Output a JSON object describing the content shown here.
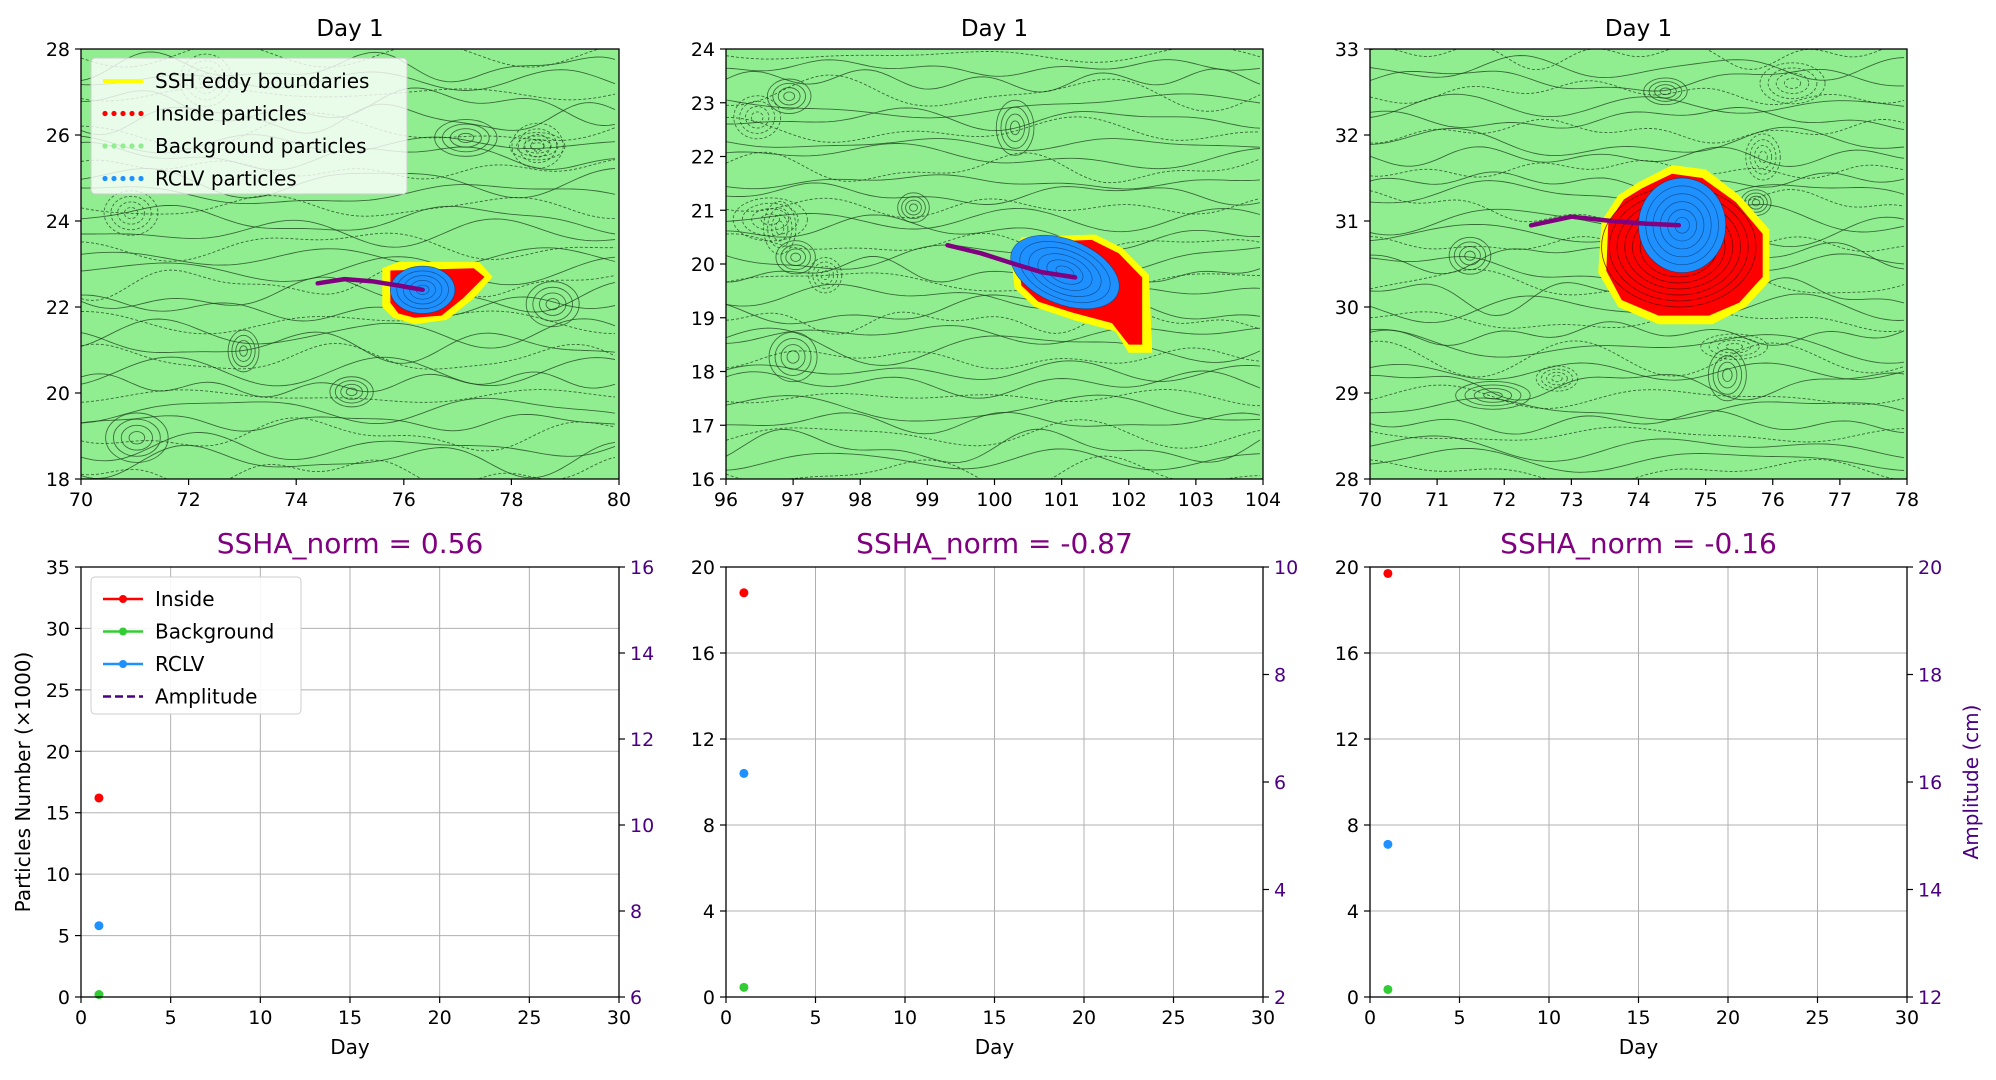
{
  "colors": {
    "boundary": "#ffff00",
    "inside": "#ff0000",
    "background": "#32cd32",
    "background_field": "#90ee90",
    "rclv": "#1e90ff",
    "track": "#800080",
    "contour": "#1a3d1a",
    "amplitude_axis": "#4b0082",
    "grid": "#b0b0b0"
  },
  "legends": {
    "map": [
      {
        "label": "SSH eddy boundaries",
        "color": "#ffff00",
        "style": "solid"
      },
      {
        "label": "Inside particles",
        "color": "#ff0000",
        "style": "dotted"
      },
      {
        "label": "Background particles",
        "color": "#90ee90",
        "style": "dotted"
      },
      {
        "label": "RCLV particles",
        "color": "#1e90ff",
        "style": "dotted"
      }
    ],
    "series": [
      {
        "label": "Inside",
        "color": "#ff0000",
        "style": "solid-marker"
      },
      {
        "label": "Background",
        "color": "#32cd32",
        "style": "solid-marker"
      },
      {
        "label": "RCLV",
        "color": "#1e90ff",
        "style": "solid-marker"
      },
      {
        "label": "Amplitude",
        "color": "#4b0082",
        "style": "dashed"
      }
    ]
  },
  "chart_data": [
    {
      "type": "contour",
      "title": "Day 1",
      "xlim": [
        70,
        80
      ],
      "ylim": [
        18,
        28
      ],
      "xticks": [
        70,
        72,
        74,
        76,
        78,
        80
      ],
      "yticks": [
        18,
        20,
        22,
        24,
        26,
        28
      ],
      "eddy_center": [
        76.3,
        22.4
      ],
      "track": [
        [
          74.4,
          22.55
        ],
        [
          74.9,
          22.65
        ],
        [
          75.4,
          22.6
        ],
        [
          75.9,
          22.5
        ],
        [
          76.35,
          22.4
        ]
      ],
      "legend": "upper-left"
    },
    {
      "type": "contour",
      "title": "Day 1",
      "xlim": [
        96,
        104
      ],
      "ylim": [
        16,
        24
      ],
      "xticks": [
        96,
        97,
        98,
        99,
        100,
        101,
        102,
        103,
        104
      ],
      "yticks": [
        16,
        17,
        18,
        19,
        20,
        21,
        22,
        23,
        24
      ],
      "eddy_center": [
        101.1,
        19.8
      ],
      "track": [
        [
          99.3,
          20.35
        ],
        [
          99.8,
          20.2
        ],
        [
          100.3,
          20.0
        ],
        [
          100.7,
          19.85
        ],
        [
          101.2,
          19.75
        ]
      ]
    },
    {
      "type": "contour",
      "title": "Day 1",
      "xlim": [
        70,
        78
      ],
      "ylim": [
        28,
        33
      ],
      "xticks": [
        70,
        71,
        72,
        73,
        74,
        75,
        76,
        77,
        78
      ],
      "yticks": [
        28,
        29,
        30,
        31,
        32,
        33
      ],
      "eddy_center": [
        74.6,
        30.85
      ],
      "track": [
        [
          72.4,
          30.95
        ],
        [
          73.0,
          31.05
        ],
        [
          73.6,
          31.0
        ],
        [
          74.1,
          30.97
        ],
        [
          74.6,
          30.95
        ]
      ]
    },
    {
      "type": "scatter",
      "title": "SSHA_norm = 0.56",
      "xlabel": "Day",
      "ylabel": "Particles Number (×1000)",
      "y2label": "",
      "xlim": [
        0,
        30
      ],
      "ylim": [
        0,
        35
      ],
      "y2lim": [
        6,
        16
      ],
      "xticks": [
        0,
        5,
        10,
        15,
        20,
        25,
        30
      ],
      "yticks": [
        0,
        5,
        10,
        15,
        20,
        25,
        30,
        35
      ],
      "y2ticks": [
        6,
        8,
        10,
        12,
        14,
        16
      ],
      "series": [
        {
          "name": "Inside",
          "x": [
            1
          ],
          "y": [
            16.2
          ]
        },
        {
          "name": "Background",
          "x": [
            1
          ],
          "y": [
            0.2
          ]
        },
        {
          "name": "RCLV",
          "x": [
            1
          ],
          "y": [
            5.8
          ]
        }
      ],
      "grid": true,
      "legend": "upper-left"
    },
    {
      "type": "scatter",
      "title": "SSHA_norm = -0.87",
      "xlabel": "Day",
      "ylabel": "",
      "y2label": "",
      "xlim": [
        0,
        30
      ],
      "ylim": [
        0,
        20
      ],
      "y2lim": [
        2,
        10
      ],
      "xticks": [
        0,
        5,
        10,
        15,
        20,
        25,
        30
      ],
      "yticks": [
        0,
        4,
        8,
        12,
        16,
        20
      ],
      "y2ticks": [
        2,
        4,
        6,
        8,
        10
      ],
      "series": [
        {
          "name": "Inside",
          "x": [
            1
          ],
          "y": [
            18.8
          ]
        },
        {
          "name": "Background",
          "x": [
            1
          ],
          "y": [
            0.45
          ]
        },
        {
          "name": "RCLV",
          "x": [
            1
          ],
          "y": [
            10.4
          ]
        }
      ],
      "grid": true
    },
    {
      "type": "scatter",
      "title": "SSHA_norm = -0.16",
      "xlabel": "Day",
      "ylabel": "",
      "y2label": "Amplitude (cm)",
      "xlim": [
        0,
        30
      ],
      "ylim": [
        0,
        20
      ],
      "y2lim": [
        12,
        20
      ],
      "xticks": [
        0,
        5,
        10,
        15,
        20,
        25,
        30
      ],
      "yticks": [
        0,
        4,
        8,
        12,
        16,
        20
      ],
      "y2ticks": [
        12,
        14,
        16,
        18,
        20
      ],
      "series": [
        {
          "name": "Inside",
          "x": [
            1
          ],
          "y": [
            19.7
          ]
        },
        {
          "name": "Background",
          "x": [
            1
          ],
          "y": [
            0.35
          ]
        },
        {
          "name": "RCLV",
          "x": [
            1
          ],
          "y": [
            7.1
          ]
        }
      ],
      "grid": true
    }
  ]
}
